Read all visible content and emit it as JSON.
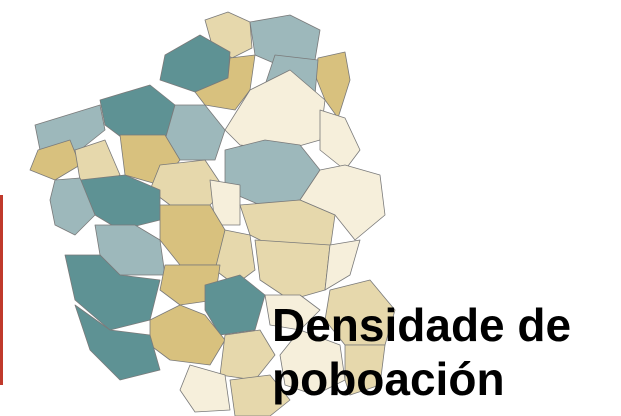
{
  "title_lines": [
    "Densidade de",
    "poboación"
  ]
}
